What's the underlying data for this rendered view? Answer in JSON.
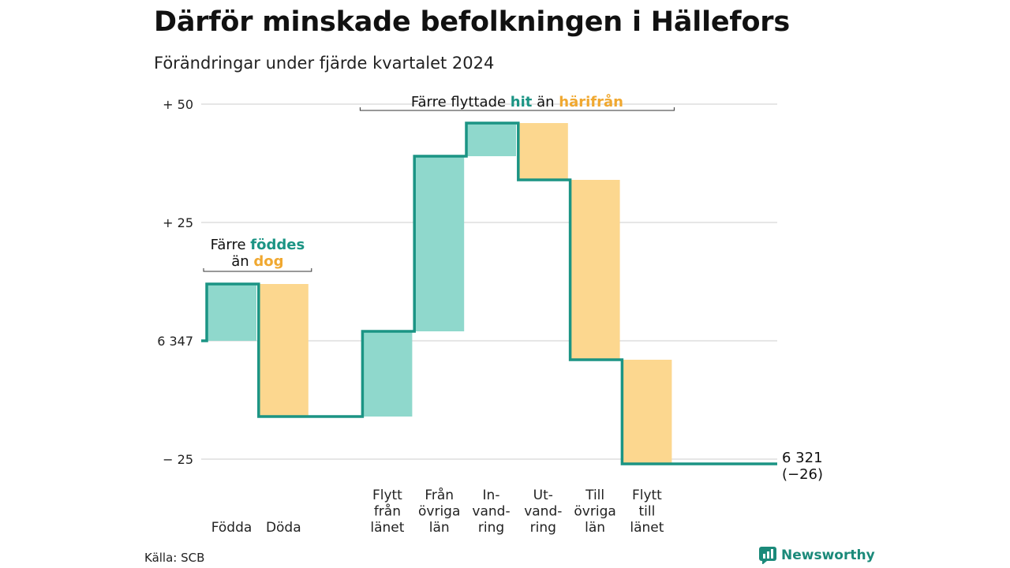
{
  "title": "Därför minskade befolkningen i Hällefors",
  "subtitle": "Förändringar under fjärde kvartalet 2024",
  "source": "Källa: SCB",
  "logo_text": "Newsworthy",
  "colors": {
    "increase": "#8fd8cc",
    "decrease": "#fcd78f",
    "line": "#1b9484",
    "grid": "#dddddd"
  },
  "chart_data": {
    "type": "bar",
    "subtype": "waterfall",
    "baseline": 6347,
    "end_value": 6321,
    "end_label": [
      "6 321",
      "(−26)"
    ],
    "ylim": [
      -27,
      52
    ],
    "yticks": [
      {
        "value": 50,
        "label": "+ 50"
      },
      {
        "value": 25,
        "label": "+ 25"
      },
      {
        "value": 0,
        "label": "6 347"
      },
      {
        "value": -25,
        "label": "− 25"
      }
    ],
    "categories": [
      {
        "label": [
          "Födda"
        ],
        "value": 12,
        "slot": 0
      },
      {
        "label": [
          "Döda"
        ],
        "value": -28,
        "slot": 1
      },
      {
        "label": [
          "Flytt",
          "från",
          "länet"
        ],
        "value": 18,
        "slot": 3
      },
      {
        "label": [
          "Från",
          "övriga",
          "län"
        ],
        "value": 37,
        "slot": 4
      },
      {
        "label": [
          "In-",
          "vand-",
          "ring"
        ],
        "value": 7,
        "slot": 5
      },
      {
        "label": [
          "Ut-",
          "vand-",
          "ring"
        ],
        "value": -12,
        "slot": 6
      },
      {
        "label": [
          "Till",
          "övriga",
          "län"
        ],
        "value": -38,
        "slot": 7
      },
      {
        "label": [
          "Flytt",
          "till",
          "länet"
        ],
        "value": -22,
        "slot": 8
      }
    ],
    "annotations": [
      {
        "parts": [
          "Färre ",
          "föddes"
        ],
        "parts2": [
          "än ",
          "dog"
        ],
        "from_slot": 0,
        "to_slot": 1
      },
      {
        "parts": [
          "Färre flyttade ",
          "hit",
          " än ",
          "härifrån"
        ],
        "from_slot": 3,
        "to_slot": 8
      }
    ]
  }
}
